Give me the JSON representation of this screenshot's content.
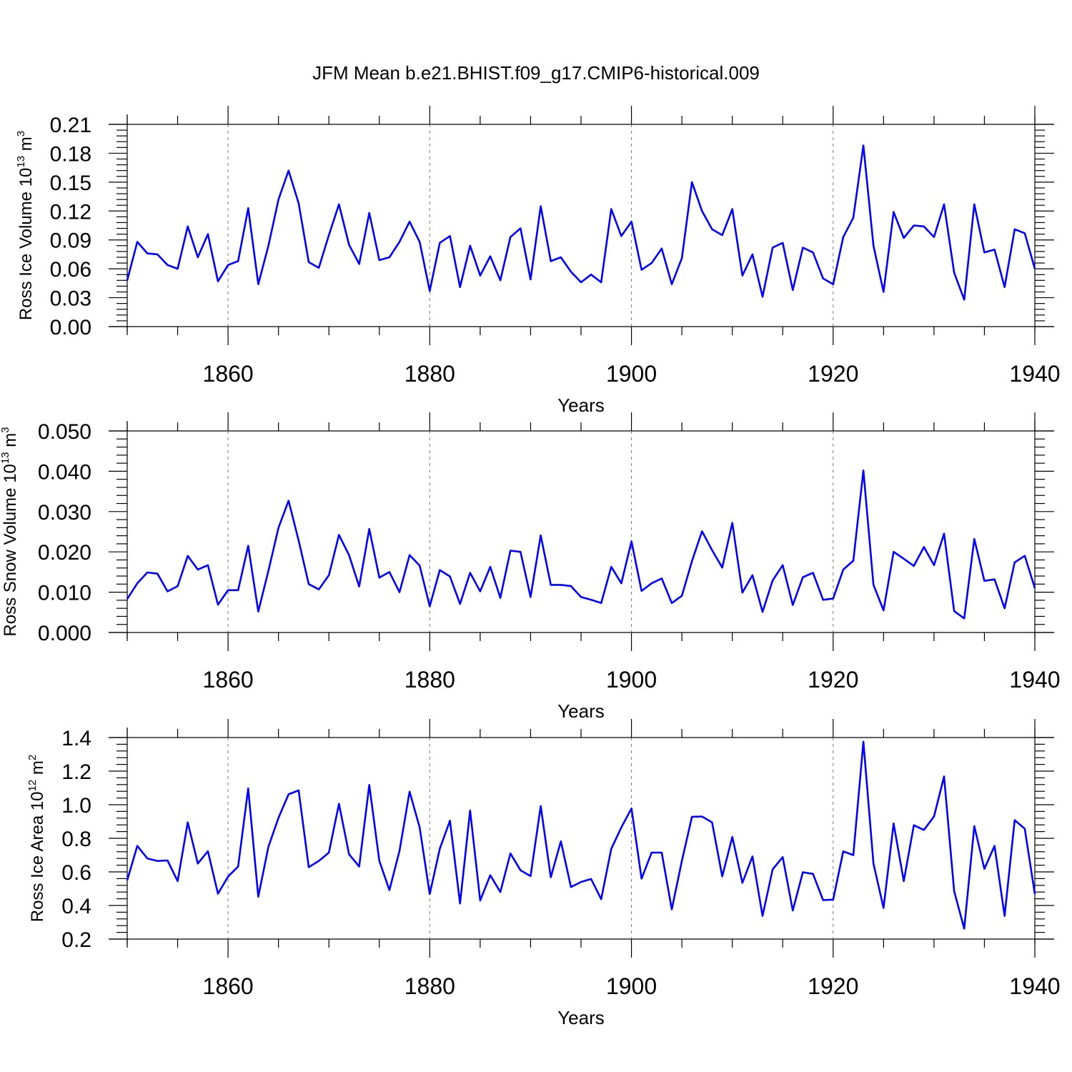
{
  "title": "JFM Mean b.e21.BHIST.f09_g17.CMIP6-historical.009",
  "colors": {
    "line": "#0000ff",
    "axis": "#000000",
    "grid": "#777777"
  },
  "chart_data": [
    {
      "type": "line",
      "ylabel_main": "Ross Ice Volume 10",
      "ylabel_exp": "13",
      "ylabel_unit": " m",
      "ylabel_unit_exp": "3",
      "xlabel": "Years",
      "xlim": [
        1850,
        1940
      ],
      "ylim": [
        0.0,
        0.21
      ],
      "yticks": [
        "0.00",
        "0.03",
        "0.06",
        "0.09",
        "0.12",
        "0.15",
        "0.18",
        "0.21"
      ],
      "xticks": [
        "1860",
        "1880",
        "1900",
        "1920",
        "1940"
      ],
      "x_start": 1850,
      "values": [
        0.048,
        0.088,
        0.076,
        0.075,
        0.064,
        0.06,
        0.104,
        0.072,
        0.096,
        0.047,
        0.064,
        0.068,
        0.123,
        0.044,
        0.084,
        0.132,
        0.162,
        0.128,
        0.067,
        0.061,
        0.095,
        0.127,
        0.085,
        0.065,
        0.118,
        0.069,
        0.072,
        0.088,
        0.109,
        0.088,
        0.037,
        0.087,
        0.094,
        0.041,
        0.084,
        0.053,
        0.073,
        0.048,
        0.093,
        0.102,
        0.049,
        0.125,
        0.068,
        0.072,
        0.057,
        0.046,
        0.054,
        0.046,
        0.122,
        0.094,
        0.109,
        0.059,
        0.066,
        0.081,
        0.044,
        0.071,
        0.15,
        0.12,
        0.101,
        0.095,
        0.122,
        0.053,
        0.075,
        0.031,
        0.082,
        0.087,
        0.038,
        0.082,
        0.077,
        0.05,
        0.044,
        0.093,
        0.113,
        0.188,
        0.084,
        0.036,
        0.119,
        0.092,
        0.105,
        0.104,
        0.093,
        0.127,
        0.056,
        0.028,
        0.127,
        0.077,
        0.08,
        0.041,
        0.101,
        0.097,
        0.06
      ]
    },
    {
      "type": "line",
      "ylabel_main": "Ross Snow Volume 10",
      "ylabel_exp": "13",
      "ylabel_unit": " m",
      "ylabel_unit_exp": "3",
      "xlabel": "Years",
      "xlim": [
        1850,
        1940
      ],
      "ylim": [
        0.0,
        0.05
      ],
      "yticks": [
        "0.000",
        "0.010",
        "0.020",
        "0.030",
        "0.040",
        "0.050"
      ],
      "xticks": [
        "1860",
        "1880",
        "1900",
        "1920",
        "1940"
      ],
      "x_start": 1850,
      "values": [
        0.0083,
        0.0122,
        0.0149,
        0.0146,
        0.0102,
        0.0115,
        0.019,
        0.0156,
        0.0167,
        0.0069,
        0.0105,
        0.0105,
        0.0215,
        0.0052,
        0.0153,
        0.026,
        0.0327,
        0.0228,
        0.012,
        0.0107,
        0.0142,
        0.0242,
        0.0192,
        0.0114,
        0.0257,
        0.0136,
        0.015,
        0.01,
        0.0192,
        0.0166,
        0.0065,
        0.0155,
        0.0139,
        0.0071,
        0.0148,
        0.0102,
        0.0163,
        0.0086,
        0.0203,
        0.02,
        0.0088,
        0.0241,
        0.0118,
        0.0118,
        0.0115,
        0.0088,
        0.0081,
        0.0073,
        0.0163,
        0.0122,
        0.0226,
        0.0103,
        0.0122,
        0.0134,
        0.0073,
        0.0091,
        0.0177,
        0.0251,
        0.0204,
        0.0161,
        0.0272,
        0.0099,
        0.0142,
        0.0051,
        0.0129,
        0.0167,
        0.0068,
        0.0137,
        0.0148,
        0.0081,
        0.0084,
        0.0156,
        0.0178,
        0.0402,
        0.0118,
        0.0055,
        0.02,
        0.0183,
        0.0165,
        0.0212,
        0.0167,
        0.0245,
        0.0053,
        0.0035,
        0.0232,
        0.0128,
        0.0132,
        0.006,
        0.0174,
        0.019,
        0.011
      ]
    },
    {
      "type": "line",
      "ylabel_main": "Ross Ice Area 10",
      "ylabel_exp": "12",
      "ylabel_unit": " m",
      "ylabel_unit_exp": "2",
      "xlabel": "Years",
      "xlim": [
        1850,
        1940
      ],
      "ylim": [
        0.2,
        1.4
      ],
      "yticks": [
        "0.2",
        "0.4",
        "0.6",
        "0.8",
        "1.0",
        "1.2",
        "1.4"
      ],
      "xticks": [
        "1860",
        "1880",
        "1900",
        "1920",
        "1940"
      ],
      "x_start": 1850,
      "values": [
        0.55,
        0.755,
        0.68,
        0.665,
        0.668,
        0.545,
        0.895,
        0.65,
        0.723,
        0.47,
        0.572,
        0.632,
        1.097,
        0.452,
        0.75,
        0.922,
        1.062,
        1.085,
        0.628,
        0.665,
        0.715,
        1.005,
        0.705,
        0.632,
        1.118,
        0.665,
        0.492,
        0.725,
        1.078,
        0.865,
        0.468,
        0.738,
        0.905,
        0.412,
        0.965,
        0.43,
        0.58,
        0.48,
        0.71,
        0.61,
        0.575,
        0.992,
        0.568,
        0.782,
        0.51,
        0.54,
        0.558,
        0.438,
        0.737,
        0.865,
        0.978,
        0.56,
        0.715,
        0.715,
        0.377,
        0.665,
        0.928,
        0.93,
        0.895,
        0.573,
        0.808,
        0.535,
        0.692,
        0.338,
        0.615,
        0.688,
        0.37,
        0.598,
        0.588,
        0.432,
        0.435,
        0.722,
        0.7,
        1.375,
        0.65,
        0.385,
        0.888,
        0.545,
        0.878,
        0.85,
        0.93,
        1.168,
        0.485,
        0.262,
        0.872,
        0.618,
        0.755,
        0.338,
        0.908,
        0.857,
        0.468
      ]
    }
  ]
}
